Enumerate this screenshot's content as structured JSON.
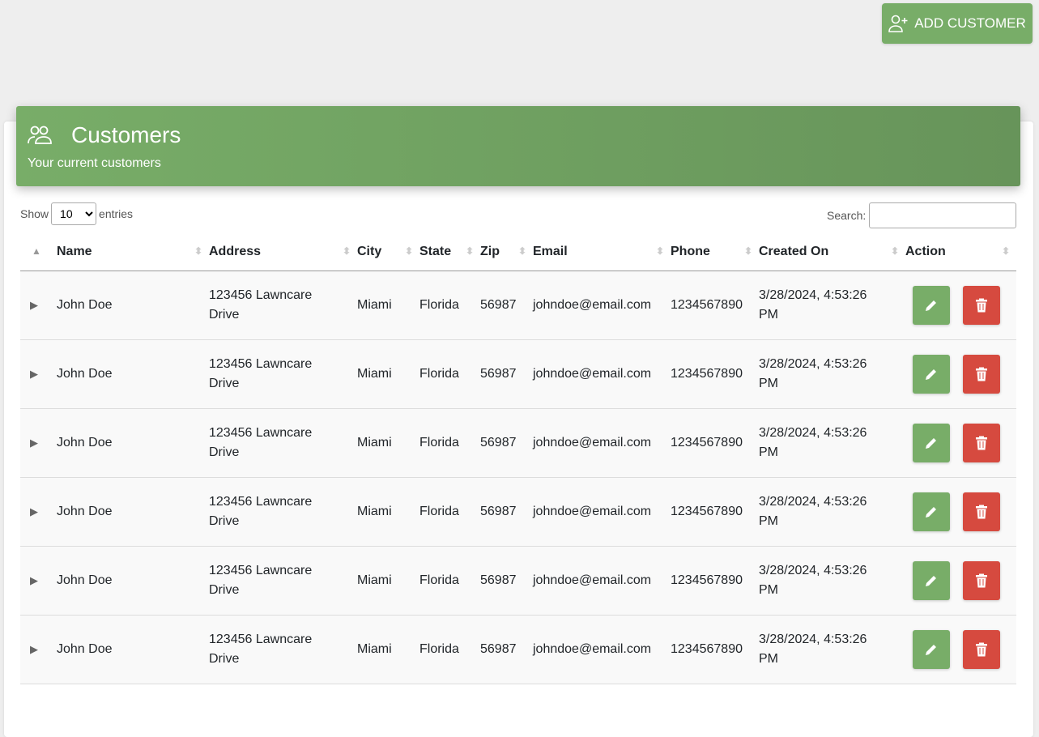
{
  "toolbar": {
    "add_customer_label": "ADD CUSTOMER"
  },
  "header": {
    "title": "Customers",
    "subtitle": "Your current customers"
  },
  "controls": {
    "show_label": "Show",
    "entries_label": "entries",
    "page_length": "10",
    "search_label": "Search:",
    "search_value": ""
  },
  "columns": [
    "Name",
    "Address",
    "City",
    "State",
    "Zip",
    "Email",
    "Phone",
    "Created On",
    "Action"
  ],
  "rows": [
    {
      "name": "John Doe",
      "address": "123456 Lawncare Drive",
      "city": "Miami",
      "state": "Florida",
      "zip": "56987",
      "email": "johndoe@email.com",
      "phone": "1234567890",
      "created": "3/28/2024, 4:53:26 PM"
    },
    {
      "name": "John Doe",
      "address": "123456 Lawncare Drive",
      "city": "Miami",
      "state": "Florida",
      "zip": "56987",
      "email": "johndoe@email.com",
      "phone": "1234567890",
      "created": "3/28/2024, 4:53:26 PM"
    },
    {
      "name": "John Doe",
      "address": "123456 Lawncare Drive",
      "city": "Miami",
      "state": "Florida",
      "zip": "56987",
      "email": "johndoe@email.com",
      "phone": "1234567890",
      "created": "3/28/2024, 4:53:26 PM"
    },
    {
      "name": "John Doe",
      "address": "123456 Lawncare Drive",
      "city": "Miami",
      "state": "Florida",
      "zip": "56987",
      "email": "johndoe@email.com",
      "phone": "1234567890",
      "created": "3/28/2024, 4:53:26 PM"
    },
    {
      "name": "John Doe",
      "address": "123456 Lawncare Drive",
      "city": "Miami",
      "state": "Florida",
      "zip": "56987",
      "email": "johndoe@email.com",
      "phone": "1234567890",
      "created": "3/28/2024, 4:53:26 PM"
    },
    {
      "name": "John Doe",
      "address": "123456 Lawncare Drive",
      "city": "Miami",
      "state": "Florida",
      "zip": "56987",
      "email": "johndoe@email.com",
      "phone": "1234567890",
      "created": "3/28/2024, 4:53:26 PM"
    }
  ],
  "colors": {
    "primary": "#78ad68",
    "danger": "#d64a3f",
    "background": "#eeeeee"
  }
}
